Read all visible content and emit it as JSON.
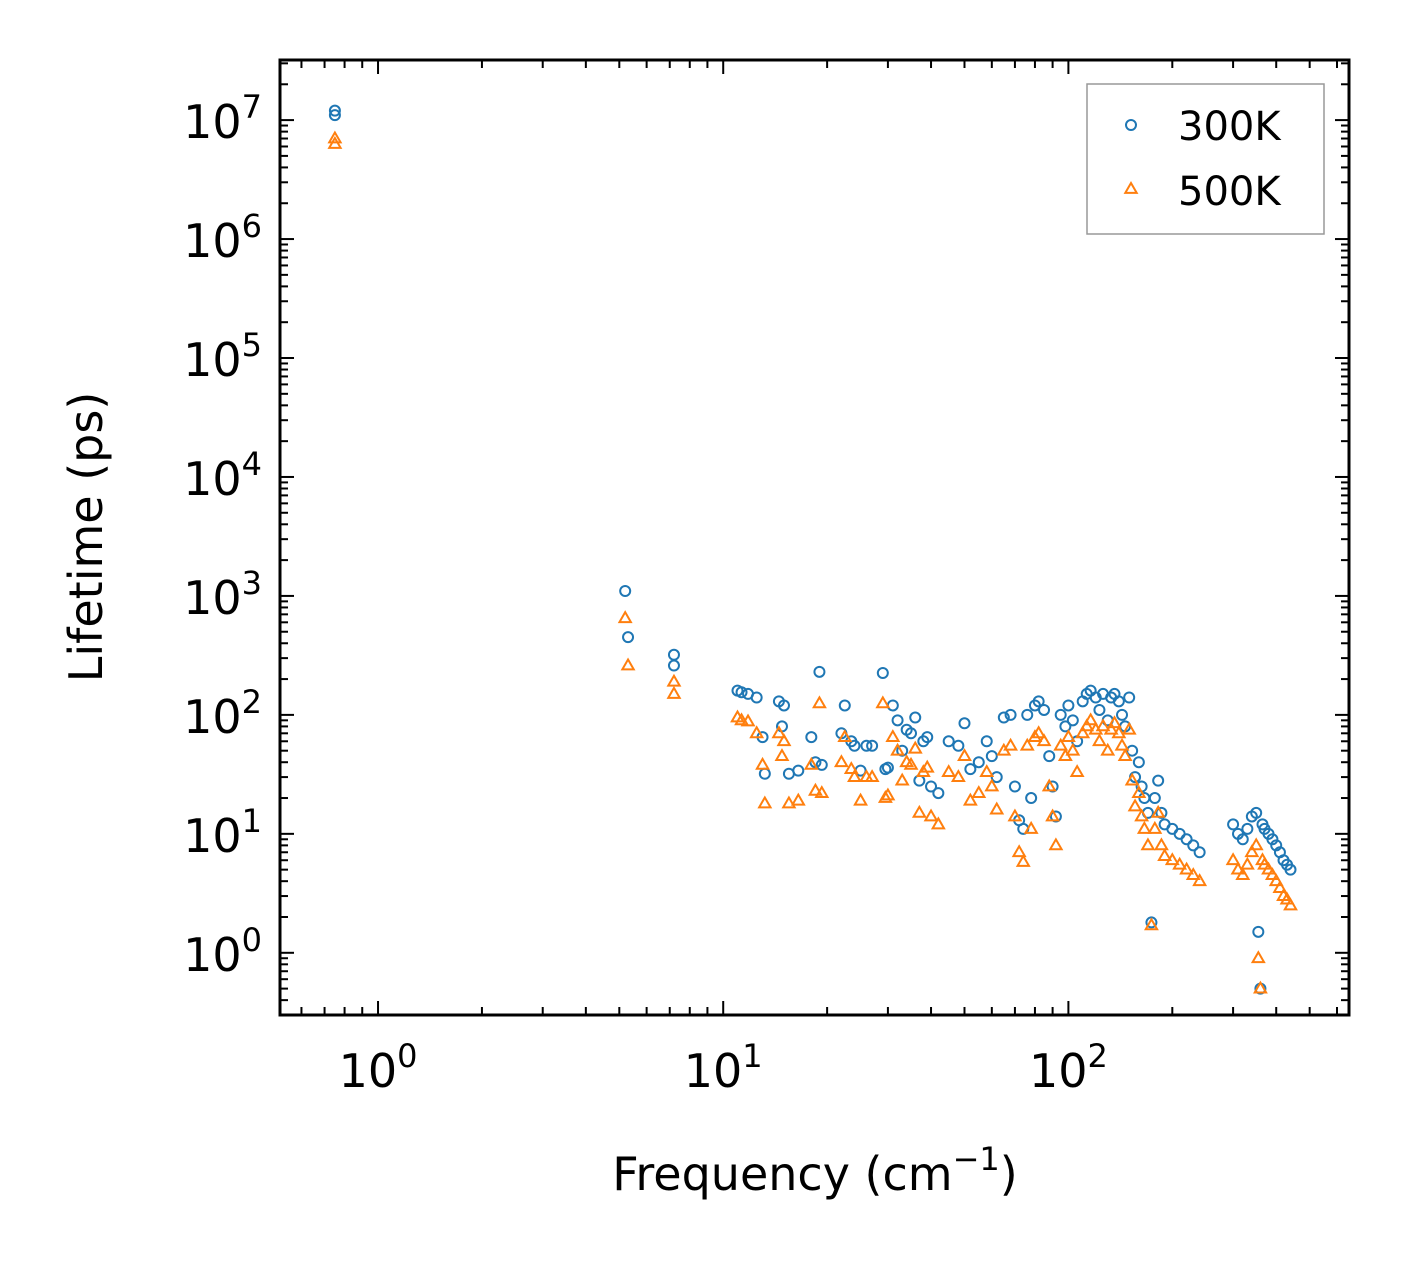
{
  "chart_data": {
    "type": "scatter",
    "title": "",
    "xlabel": "Frequency (cm",
    "xlabel_sup": "−1",
    "xlabel_end": ")",
    "ylabel": "Lifetime (ps)",
    "xscale": "log",
    "yscale": "log",
    "xlim": [
      0.52,
      650
    ],
    "ylim": [
      0.3,
      32000000
    ],
    "x_ticks": [
      {
        "value": 1,
        "base": "10",
        "exp": "0"
      },
      {
        "value": 10,
        "base": "10",
        "exp": "1"
      },
      {
        "value": 100,
        "base": "10",
        "exp": "2"
      }
    ],
    "y_ticks": [
      {
        "value": 1,
        "base": "10",
        "exp": "0"
      },
      {
        "value": 10,
        "base": "10",
        "exp": "1"
      },
      {
        "value": 100,
        "base": "10",
        "exp": "2"
      },
      {
        "value": 1000,
        "base": "10",
        "exp": "3"
      },
      {
        "value": 10000,
        "base": "10",
        "exp": "4"
      },
      {
        "value": 100000,
        "base": "10",
        "exp": "5"
      },
      {
        "value": 1000000,
        "base": "10",
        "exp": "6"
      },
      {
        "value": 10000000,
        "base": "10",
        "exp": "7"
      }
    ],
    "legend_position": "top-right",
    "series": [
      {
        "name": "300K",
        "marker": "circle",
        "color": "#1f77b4",
        "points": [
          [
            0.75,
            12000000
          ],
          [
            0.75,
            11000000
          ],
          [
            5.2,
            1100
          ],
          [
            5.3,
            450
          ],
          [
            7.2,
            320
          ],
          [
            7.2,
            260
          ],
          [
            11,
            160
          ],
          [
            11.3,
            155
          ],
          [
            11.8,
            150
          ],
          [
            12.5,
            140
          ],
          [
            13,
            65
          ],
          [
            13.2,
            32
          ],
          [
            14.5,
            130
          ],
          [
            14.8,
            80
          ],
          [
            15,
            120
          ],
          [
            15.5,
            32
          ],
          [
            16.5,
            34
          ],
          [
            18,
            65
          ],
          [
            18.5,
            40
          ],
          [
            19,
            230
          ],
          [
            19.3,
            38
          ],
          [
            22,
            70
          ],
          [
            22.5,
            120
          ],
          [
            23.5,
            60
          ],
          [
            24,
            55
          ],
          [
            25,
            34
          ],
          [
            26,
            55
          ],
          [
            27,
            55
          ],
          [
            29,
            225
          ],
          [
            29.5,
            35
          ],
          [
            30,
            36
          ],
          [
            31,
            120
          ],
          [
            32,
            90
          ],
          [
            33,
            50
          ],
          [
            34,
            75
          ],
          [
            35,
            70
          ],
          [
            36,
            95
          ],
          [
            37,
            28
          ],
          [
            38,
            60
          ],
          [
            39,
            65
          ],
          [
            40,
            25
          ],
          [
            42,
            22
          ],
          [
            45,
            60
          ],
          [
            48,
            55
          ],
          [
            50,
            85
          ],
          [
            52,
            35
          ],
          [
            55,
            40
          ],
          [
            58,
            60
          ],
          [
            60,
            45
          ],
          [
            62,
            30
          ],
          [
            65,
            95
          ],
          [
            68,
            100
          ],
          [
            70,
            25
          ],
          [
            72,
            13
          ],
          [
            74,
            11
          ],
          [
            76,
            100
          ],
          [
            78,
            20
          ],
          [
            80,
            120
          ],
          [
            82,
            130
          ],
          [
            85,
            110
          ],
          [
            88,
            45
          ],
          [
            90,
            25
          ],
          [
            92,
            14
          ],
          [
            95,
            100
          ],
          [
            98,
            80
          ],
          [
            100,
            120
          ],
          [
            103,
            90
          ],
          [
            106,
            60
          ],
          [
            110,
            130
          ],
          [
            113,
            150
          ],
          [
            116,
            160
          ],
          [
            120,
            140
          ],
          [
            123,
            110
          ],
          [
            126,
            150
          ],
          [
            130,
            90
          ],
          [
            133,
            140
          ],
          [
            136,
            150
          ],
          [
            140,
            130
          ],
          [
            143,
            100
          ],
          [
            146,
            80
          ],
          [
            150,
            140
          ],
          [
            153,
            50
          ],
          [
            156,
            30
          ],
          [
            160,
            40
          ],
          [
            163,
            25
          ],
          [
            166,
            20
          ],
          [
            170,
            15
          ],
          [
            174,
            1.8
          ],
          [
            178,
            20
          ],
          [
            182,
            28
          ],
          [
            186,
            15
          ],
          [
            190,
            12
          ],
          [
            200,
            11
          ],
          [
            210,
            10
          ],
          [
            220,
            9
          ],
          [
            230,
            8
          ],
          [
            240,
            7
          ],
          [
            300,
            12
          ],
          [
            310,
            10
          ],
          [
            320,
            9
          ],
          [
            330,
            11
          ],
          [
            340,
            14
          ],
          [
            350,
            15
          ],
          [
            355,
            1.5
          ],
          [
            360,
            0.5
          ],
          [
            365,
            12
          ],
          [
            370,
            11
          ],
          [
            380,
            10
          ],
          [
            390,
            9
          ],
          [
            400,
            8
          ],
          [
            410,
            7
          ],
          [
            420,
            6
          ],
          [
            430,
            5.5
          ],
          [
            440,
            5
          ]
        ]
      },
      {
        "name": "500K",
        "marker": "triangle",
        "color": "#ff7f0e",
        "points": [
          [
            0.75,
            7000000
          ],
          [
            0.75,
            6300000
          ],
          [
            5.2,
            650
          ],
          [
            5.3,
            260
          ],
          [
            7.2,
            190
          ],
          [
            7.2,
            150
          ],
          [
            11,
            95
          ],
          [
            11.3,
            90
          ],
          [
            11.8,
            88
          ],
          [
            12.5,
            70
          ],
          [
            13,
            38
          ],
          [
            13.2,
            18
          ],
          [
            14.5,
            70
          ],
          [
            14.8,
            45
          ],
          [
            15,
            60
          ],
          [
            15.5,
            18
          ],
          [
            16.5,
            19
          ],
          [
            18,
            38
          ],
          [
            18.5,
            23
          ],
          [
            19,
            125
          ],
          [
            19.3,
            22
          ],
          [
            22,
            40
          ],
          [
            22.5,
            65
          ],
          [
            23.5,
            35
          ],
          [
            24,
            30
          ],
          [
            25,
            19
          ],
          [
            26,
            30
          ],
          [
            27,
            30
          ],
          [
            29,
            125
          ],
          [
            29.5,
            20
          ],
          [
            30,
            21
          ],
          [
            31,
            65
          ],
          [
            32,
            50
          ],
          [
            33,
            28
          ],
          [
            34,
            40
          ],
          [
            35,
            38
          ],
          [
            36,
            52
          ],
          [
            37,
            15
          ],
          [
            38,
            33
          ],
          [
            39,
            36
          ],
          [
            40,
            14
          ],
          [
            42,
            12
          ],
          [
            45,
            33
          ],
          [
            48,
            30
          ],
          [
            50,
            45
          ],
          [
            52,
            19
          ],
          [
            55,
            22
          ],
          [
            58,
            33
          ],
          [
            60,
            25
          ],
          [
            62,
            16
          ],
          [
            65,
            50
          ],
          [
            68,
            55
          ],
          [
            70,
            14
          ],
          [
            72,
            7
          ],
          [
            74,
            5.8
          ],
          [
            76,
            55
          ],
          [
            78,
            11
          ],
          [
            80,
            65
          ],
          [
            82,
            70
          ],
          [
            85,
            60
          ],
          [
            88,
            25
          ],
          [
            90,
            14
          ],
          [
            92,
            8
          ],
          [
            95,
            55
          ],
          [
            98,
            45
          ],
          [
            100,
            65
          ],
          [
            103,
            50
          ],
          [
            106,
            33
          ],
          [
            110,
            70
          ],
          [
            113,
            80
          ],
          [
            116,
            90
          ],
          [
            120,
            75
          ],
          [
            123,
            60
          ],
          [
            126,
            80
          ],
          [
            130,
            50
          ],
          [
            133,
            75
          ],
          [
            136,
            85
          ],
          [
            140,
            70
          ],
          [
            143,
            55
          ],
          [
            146,
            45
          ],
          [
            150,
            75
          ],
          [
            153,
            28
          ],
          [
            156,
            17
          ],
          [
            160,
            22
          ],
          [
            163,
            14
          ],
          [
            166,
            11
          ],
          [
            170,
            8
          ],
          [
            174,
            1.7
          ],
          [
            178,
            11
          ],
          [
            182,
            15
          ],
          [
            186,
            8
          ],
          [
            190,
            6.5
          ],
          [
            200,
            6
          ],
          [
            210,
            5.5
          ],
          [
            220,
            5
          ],
          [
            230,
            4.5
          ],
          [
            240,
            4
          ],
          [
            300,
            6
          ],
          [
            310,
            5
          ],
          [
            320,
            4.5
          ],
          [
            330,
            5.5
          ],
          [
            340,
            7
          ],
          [
            350,
            8
          ],
          [
            355,
            0.9
          ],
          [
            360,
            0.5
          ],
          [
            365,
            6
          ],
          [
            370,
            5.5
          ],
          [
            380,
            5
          ],
          [
            390,
            4.5
          ],
          [
            400,
            4
          ],
          [
            410,
            3.5
          ],
          [
            420,
            3
          ],
          [
            430,
            2.8
          ],
          [
            440,
            2.5
          ]
        ]
      }
    ]
  }
}
